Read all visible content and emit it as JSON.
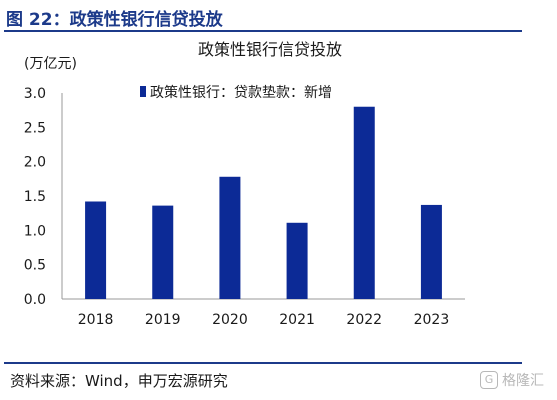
{
  "figure": {
    "title": "图 22：政策性银行信贷投放",
    "source": "资料来源：Wind，申万宏源研究",
    "watermark": {
      "text": "格隆汇",
      "badge": "G"
    }
  },
  "chart_data": {
    "type": "bar",
    "title": "政策性银行信贷投放",
    "unit_label": "(万亿元)",
    "legend": "政策性银行：贷款垫款：新增",
    "legend_position": "top-right",
    "categories": [
      "2018",
      "2019",
      "2020",
      "2021",
      "2022",
      "2023"
    ],
    "values": [
      1.42,
      1.36,
      1.78,
      1.11,
      2.8,
      1.37
    ],
    "ylim": [
      0,
      3.0
    ],
    "yticks": [
      "0.0",
      "0.5",
      "1.0",
      "1.5",
      "2.0",
      "2.5",
      "3.0"
    ],
    "bar_color": "#0c2a96",
    "grid": false
  }
}
